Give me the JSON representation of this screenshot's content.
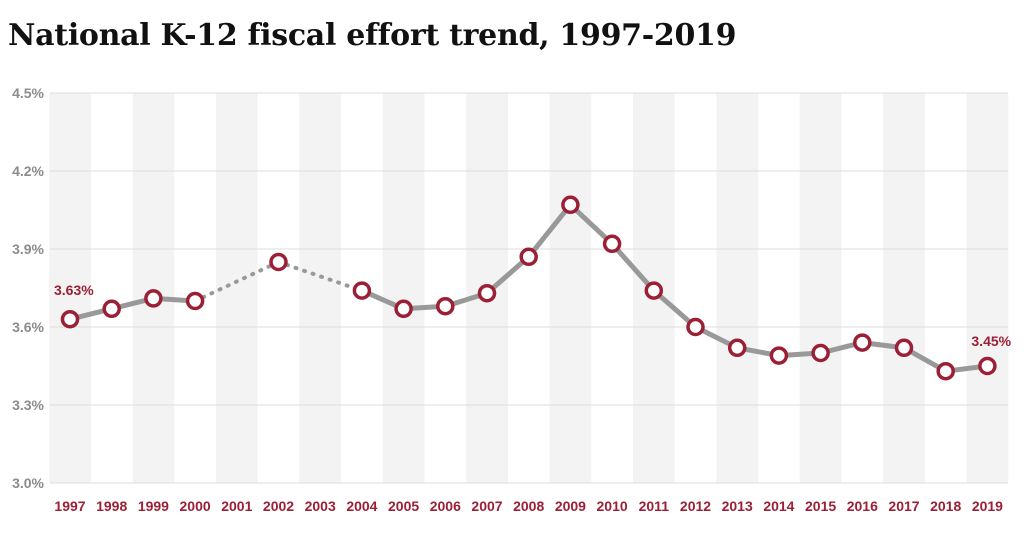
{
  "title": "National K-12 fiscal effort trend, 1997-2019",
  "colors": {
    "line": "#999999",
    "marker": "#9b1f35",
    "band": "#f3f3f3",
    "grid": "#dcdcdc",
    "label": "#9b1f35",
    "ytick": "#8c8c8c"
  },
  "chart_data": {
    "type": "line",
    "title": "National K-12 fiscal effort trend, 1997-2019",
    "xlabel": "",
    "ylabel": "",
    "categories": [
      "1997",
      "1998",
      "1999",
      "2000",
      "2001",
      "2002",
      "2003",
      "2004",
      "2005",
      "2006",
      "2007",
      "2008",
      "2009",
      "2010",
      "2011",
      "2012",
      "2013",
      "2014",
      "2015",
      "2016",
      "2017",
      "2018",
      "2019"
    ],
    "values": [
      3.63,
      3.67,
      3.71,
      3.7,
      null,
      3.85,
      null,
      3.74,
      3.67,
      3.68,
      3.73,
      3.87,
      4.07,
      3.92,
      3.74,
      3.6,
      3.52,
      3.49,
      3.5,
      3.54,
      3.52,
      3.43,
      3.45
    ],
    "dotted_segments": [
      [
        3,
        5
      ],
      [
        5,
        7
      ]
    ],
    "ylim": [
      3.0,
      4.5
    ],
    "yticks": [
      "3.0%",
      "3.3%",
      "3.6%",
      "3.9%",
      "4.2%",
      "4.5%"
    ],
    "ytick_values": [
      3.0,
      3.3,
      3.6,
      3.9,
      4.2,
      4.5
    ],
    "data_labels": [
      {
        "index": 0,
        "text": "3.63%"
      },
      {
        "index": 22,
        "text": "3.45%"
      }
    ],
    "grid": true,
    "legend": "none"
  }
}
